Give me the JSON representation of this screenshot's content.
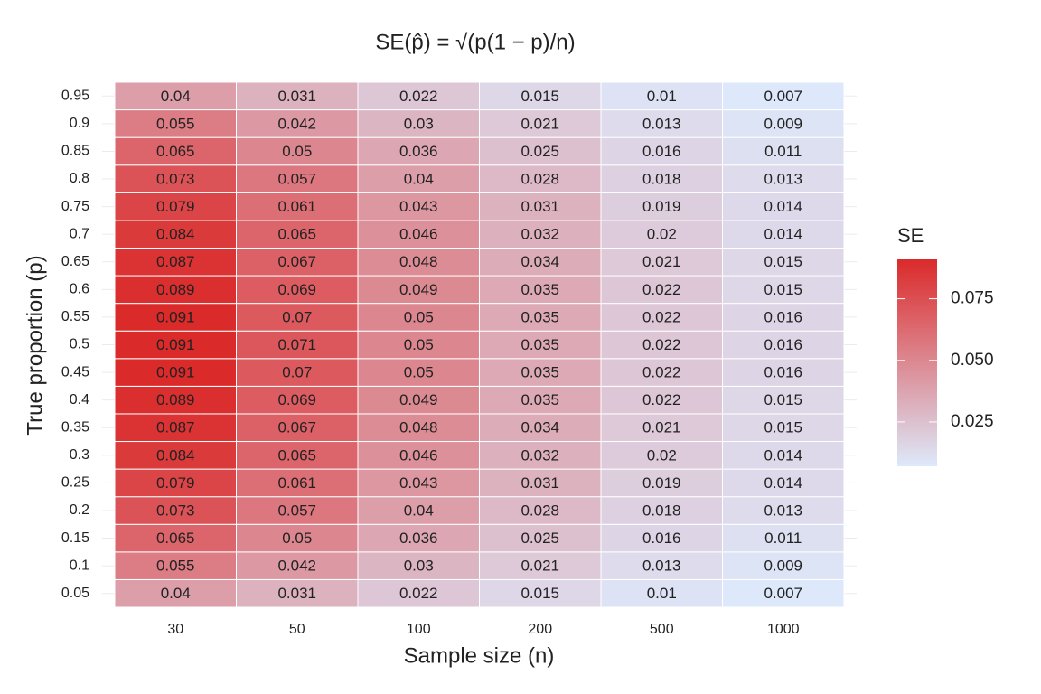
{
  "chart_data": {
    "type": "heatmap",
    "title": "SE(p̂) = √(p(1 − p)/n)",
    "x_label": "Sample size (n)",
    "y_label": "True proportion (p)",
    "x_categories": [
      30,
      50,
      100,
      200,
      500,
      1000
    ],
    "y_categories": [
      0.05,
      0.1,
      0.15,
      0.2,
      0.25,
      0.3,
      0.35,
      0.4,
      0.45,
      0.5,
      0.55,
      0.6,
      0.65,
      0.7,
      0.75,
      0.8,
      0.85,
      0.9,
      0.95
    ],
    "values": [
      [
        0.04,
        0.031,
        0.022,
        0.015,
        0.01,
        0.007
      ],
      [
        0.055,
        0.042,
        0.03,
        0.021,
        0.013,
        0.009
      ],
      [
        0.065,
        0.05,
        0.036,
        0.025,
        0.016,
        0.011
      ],
      [
        0.073,
        0.057,
        0.04,
        0.028,
        0.018,
        0.013
      ],
      [
        0.079,
        0.061,
        0.043,
        0.031,
        0.019,
        0.014
      ],
      [
        0.084,
        0.065,
        0.046,
        0.032,
        0.02,
        0.014
      ],
      [
        0.087,
        0.067,
        0.048,
        0.034,
        0.021,
        0.015
      ],
      [
        0.089,
        0.069,
        0.049,
        0.035,
        0.022,
        0.015
      ],
      [
        0.091,
        0.07,
        0.05,
        0.035,
        0.022,
        0.016
      ],
      [
        0.091,
        0.071,
        0.05,
        0.035,
        0.022,
        0.016
      ],
      [
        0.091,
        0.07,
        0.05,
        0.035,
        0.022,
        0.016
      ],
      [
        0.089,
        0.069,
        0.049,
        0.035,
        0.022,
        0.015
      ],
      [
        0.087,
        0.067,
        0.048,
        0.034,
        0.021,
        0.015
      ],
      [
        0.084,
        0.065,
        0.046,
        0.032,
        0.02,
        0.014
      ],
      [
        0.079,
        0.061,
        0.043,
        0.031,
        0.019,
        0.014
      ],
      [
        0.073,
        0.057,
        0.04,
        0.028,
        0.018,
        0.013
      ],
      [
        0.065,
        0.05,
        0.036,
        0.025,
        0.016,
        0.011
      ],
      [
        0.055,
        0.042,
        0.03,
        0.021,
        0.013,
        0.009
      ],
      [
        0.04,
        0.031,
        0.022,
        0.015,
        0.01,
        0.007
      ]
    ],
    "legend_title": "SE",
    "colorlim": [
      0.007,
      0.091
    ],
    "colorticks": [
      0.025,
      {
        "value": 0.05,
        "label": "0.050"
      },
      0.075
    ],
    "colorscale": [
      "#dde9fb",
      "#db2a2a"
    ],
    "grid": true
  }
}
